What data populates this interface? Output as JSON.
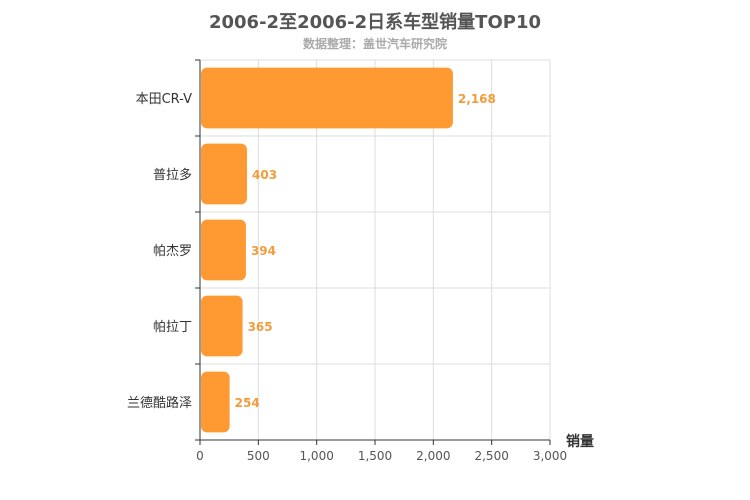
{
  "chart_data": {
    "type": "bar",
    "orientation": "horizontal",
    "title": "2006-2至2006-2日系车型销量TOP10",
    "subtitle": "数据整理：盖世汽车研究院",
    "categories": [
      "本田CR-V",
      "普拉多",
      "帕杰罗",
      "帕拉丁",
      "兰德酷路泽"
    ],
    "values": [
      2168,
      403,
      394,
      365,
      254
    ],
    "value_labels": [
      "2,168",
      "403",
      "394",
      "365",
      "254"
    ],
    "xlabel": "销量",
    "xlim": [
      0,
      3000
    ],
    "x_ticks": [
      0,
      500,
      1000,
      1500,
      2000,
      2500,
      3000
    ],
    "x_tick_labels": [
      "0",
      "500",
      "1,000",
      "1,500",
      "2,000",
      "2,500",
      "3,000"
    ],
    "grid": true,
    "bar_color": "#ff9a33",
    "label_color": "#f39c3c"
  }
}
